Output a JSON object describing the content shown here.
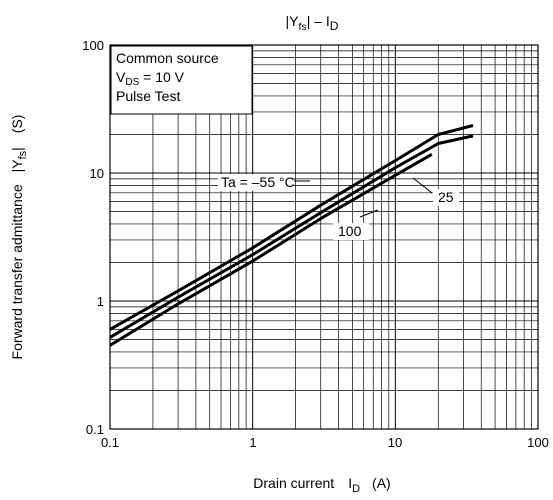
{
  "chart_data": {
    "type": "line",
    "title": "|Yfs| – ID",
    "title_parts": {
      "main": "|Y",
      "sub1": "fs",
      "mid": "| – I",
      "sub2": "D"
    },
    "xlabel": "Drain current I_D (A)",
    "xlabel_parts": {
      "text": "Drain current",
      "sym": "I",
      "sub": "D",
      "unit": "(A)"
    },
    "ylabel": "Forward transfer admittance |Yfs| (S)",
    "ylabel_parts": {
      "text": "Forward transfer admittance",
      "sym": "|Y",
      "sub": "fs",
      "close": "|",
      "unit": "(S)"
    },
    "x_scale": "log",
    "y_scale": "log",
    "xlim": [
      0.1,
      100
    ],
    "ylim": [
      0.1,
      100
    ],
    "x_ticks": [
      "0.1",
      "1",
      "10",
      "100"
    ],
    "y_ticks": [
      "0.1",
      "1",
      "10",
      "100"
    ],
    "grid": true,
    "conditions": {
      "line1": "Common source",
      "line2_sym": "V",
      "line2_sub": "DS",
      "line2_val": " = 10 V",
      "line3": "Pulse Test"
    },
    "series": [
      {
        "name": "Ta = –55 °C",
        "x": [
          0.1,
          0.3,
          1,
          3,
          10,
          20,
          35
        ],
        "y": [
          0.6,
          1.2,
          2.6,
          5.6,
          12.5,
          20,
          23.5
        ]
      },
      {
        "name": "25",
        "x": [
          0.1,
          0.3,
          1,
          3,
          10,
          20,
          35
        ],
        "y": [
          0.52,
          1.07,
          2.3,
          4.9,
          11,
          17,
          19.5
        ]
      },
      {
        "name": "100",
        "x": [
          0.1,
          0.3,
          1,
          3,
          10,
          18
        ],
        "y": [
          0.45,
          0.95,
          2.05,
          4.4,
          9.6,
          14
        ]
      }
    ]
  }
}
